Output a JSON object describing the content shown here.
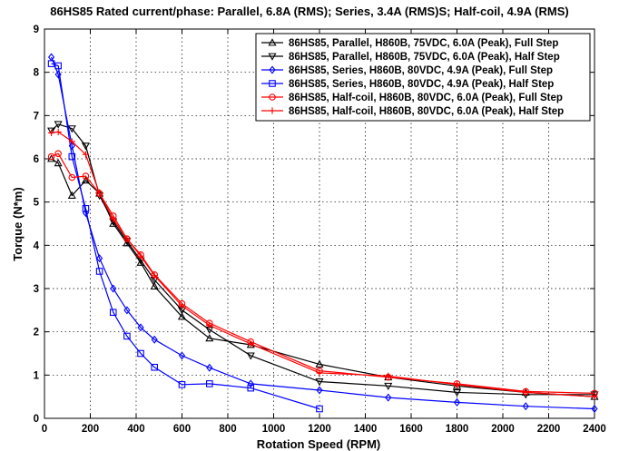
{
  "chart_data": {
    "type": "line",
    "title": "86HS85 Rated current/phase: Parallel, 6.8A (RMS); Series, 3.4A (RMS)S; Half-coil, 4.9A (RMS)",
    "xlabel": "Rotation Speed (RPM)",
    "ylabel": "Torque (N*m)",
    "xlim": [
      0,
      2400
    ],
    "ylim": [
      0,
      9
    ],
    "xticks": [
      0,
      200,
      400,
      600,
      800,
      1000,
      1200,
      1400,
      1600,
      1800,
      2000,
      2200,
      2400
    ],
    "yticks": [
      0,
      1,
      2,
      3,
      4,
      5,
      6,
      7,
      8,
      9
    ],
    "grid": true,
    "legend_position": "top-right",
    "series": [
      {
        "name": "86HS85, Parallel, H860B, 75VDC, 6.0A (Peak), Full Step",
        "color": "#000000",
        "marker": "triangle-up",
        "points": [
          [
            30,
            6.0
          ],
          [
            60,
            5.9
          ],
          [
            120,
            5.15
          ],
          [
            180,
            5.5
          ],
          [
            240,
            5.2
          ],
          [
            300,
            4.5
          ],
          [
            360,
            4.05
          ],
          [
            420,
            3.6
          ],
          [
            480,
            3.05
          ],
          [
            600,
            2.35
          ],
          [
            720,
            1.85
          ],
          [
            900,
            1.7
          ],
          [
            1200,
            1.25
          ],
          [
            1500,
            0.95
          ],
          [
            1800,
            0.75
          ],
          [
            2100,
            0.6
          ],
          [
            2400,
            0.5
          ]
        ]
      },
      {
        "name": "86HS85, Parallel, H860B, 75VDC, 6.0A (Peak), Half Step",
        "color": "#000000",
        "marker": "triangle-down",
        "points": [
          [
            30,
            6.65
          ],
          [
            60,
            6.8
          ],
          [
            120,
            6.7
          ],
          [
            180,
            6.3
          ],
          [
            240,
            5.15
          ],
          [
            300,
            4.55
          ],
          [
            360,
            4.1
          ],
          [
            420,
            3.65
          ],
          [
            480,
            3.2
          ],
          [
            600,
            2.5
          ],
          [
            720,
            2.05
          ],
          [
            900,
            1.45
          ],
          [
            1200,
            0.85
          ],
          [
            1500,
            0.75
          ],
          [
            1800,
            0.6
          ],
          [
            2100,
            0.55
          ],
          [
            2400,
            0.55
          ]
        ]
      },
      {
        "name": "86HS85, Series, H860B, 80VDC, 4.9A (Peak), Full Step",
        "color": "#0000ff",
        "marker": "diamond",
        "points": [
          [
            30,
            8.35
          ],
          [
            60,
            7.95
          ],
          [
            120,
            6.3
          ],
          [
            180,
            4.75
          ],
          [
            240,
            3.7
          ],
          [
            300,
            3.0
          ],
          [
            360,
            2.5
          ],
          [
            420,
            2.1
          ],
          [
            480,
            1.82
          ],
          [
            600,
            1.45
          ],
          [
            720,
            1.17
          ],
          [
            900,
            0.8
          ],
          [
            1200,
            0.65
          ],
          [
            1500,
            0.48
          ],
          [
            1800,
            0.37
          ],
          [
            2100,
            0.28
          ],
          [
            2400,
            0.22
          ]
        ]
      },
      {
        "name": "86HS85, Series, H860B, 80VDC, 4.9A (Peak), Half Step",
        "color": "#0000ff",
        "marker": "square",
        "points": [
          [
            30,
            8.2
          ],
          [
            60,
            8.15
          ],
          [
            120,
            6.05
          ],
          [
            180,
            4.85
          ],
          [
            240,
            3.4
          ],
          [
            300,
            2.45
          ],
          [
            360,
            1.9
          ],
          [
            420,
            1.5
          ],
          [
            480,
            1.18
          ],
          [
            600,
            0.78
          ],
          [
            720,
            0.8
          ],
          [
            900,
            0.7
          ],
          [
            1200,
            0.22
          ]
        ]
      },
      {
        "name": "86HS85, Half-coil, H860B, 80VDC, 6.0A (Peak), Full Step",
        "color": "#ff0000",
        "marker": "circle",
        "points": [
          [
            30,
            6.05
          ],
          [
            60,
            6.12
          ],
          [
            120,
            5.57
          ],
          [
            180,
            5.6
          ],
          [
            240,
            5.2
          ],
          [
            300,
            4.68
          ],
          [
            360,
            4.15
          ],
          [
            420,
            3.78
          ],
          [
            480,
            3.32
          ],
          [
            600,
            2.65
          ],
          [
            720,
            2.2
          ],
          [
            900,
            1.77
          ],
          [
            1200,
            1.1
          ],
          [
            1500,
            0.95
          ],
          [
            1800,
            0.8
          ],
          [
            2100,
            0.62
          ],
          [
            2400,
            0.58
          ]
        ]
      },
      {
        "name": "86HS85, Half-coil, H860B, 80VDC, 6.0A (Peak), Half Step",
        "color": "#ff0000",
        "marker": "plus",
        "points": [
          [
            30,
            6.6
          ],
          [
            60,
            6.62
          ],
          [
            120,
            6.4
          ],
          [
            180,
            6.1
          ],
          [
            240,
            5.2
          ],
          [
            300,
            4.6
          ],
          [
            360,
            4.15
          ],
          [
            420,
            3.75
          ],
          [
            480,
            3.3
          ],
          [
            600,
            2.6
          ],
          [
            720,
            2.15
          ],
          [
            900,
            1.72
          ],
          [
            1200,
            1.05
          ],
          [
            1500,
            0.98
          ],
          [
            1800,
            0.78
          ],
          [
            2100,
            0.6
          ],
          [
            2400,
            0.5
          ]
        ]
      }
    ]
  }
}
